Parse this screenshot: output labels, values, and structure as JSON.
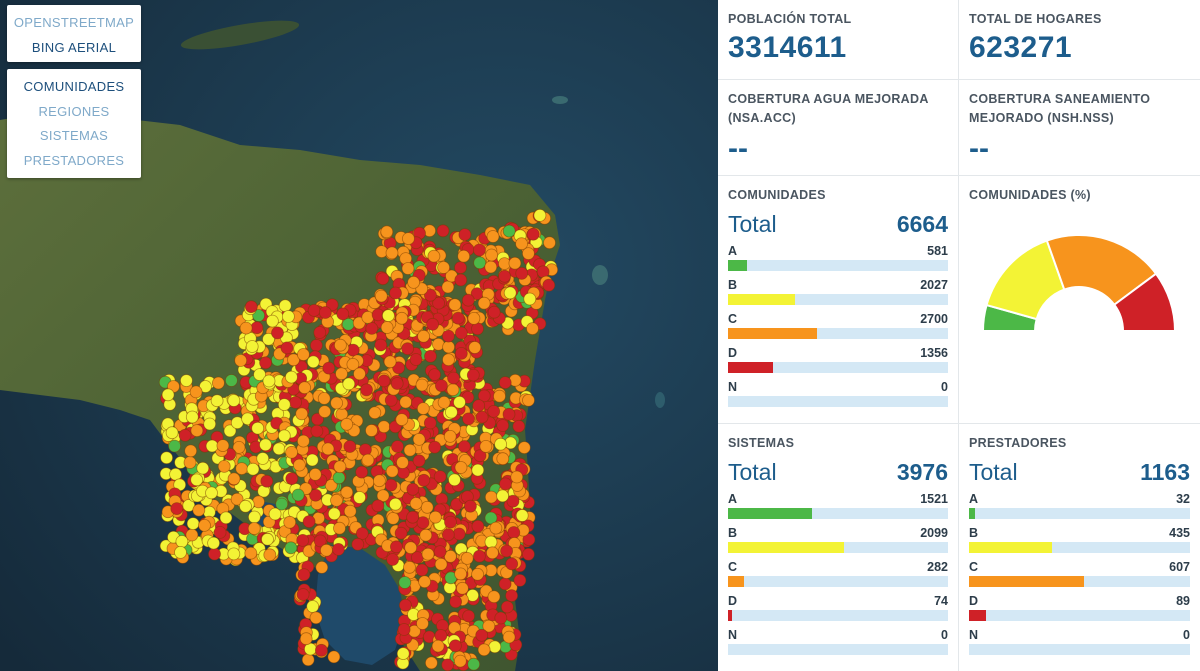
{
  "map": {
    "basemaps": [
      {
        "label": "OPENSTREETMAP",
        "active": false
      },
      {
        "label": "BING AERIAL",
        "active": true
      }
    ],
    "layers": [
      {
        "label": "COMUNIDADES",
        "active": true
      },
      {
        "label": "REGIONES",
        "active": false
      },
      {
        "label": "SISTEMAS",
        "active": false
      },
      {
        "label": "PRESTADORES",
        "active": false
      }
    ]
  },
  "colors": {
    "A": "#4cb847",
    "B": "#f3f335",
    "C": "#f7941d",
    "D": "#cf2127",
    "N": "#d4e8f5",
    "accent": "#1d5d8c"
  },
  "summary": {
    "poblacion_label": "POBLACIÓN TOTAL",
    "poblacion_value": "3314611",
    "hogares_label": "TOTAL DE HOGARES",
    "hogares_value": "623271",
    "agua_label": "COBERTURA AGUA MEJORADA (NSA.ACC)",
    "agua_value": "--",
    "saneamiento_label": "COBERTURA SANEAMIENTO MEJORADO (NSH.NSS)",
    "saneamiento_value": "--"
  },
  "comunidades": {
    "title": "COMUNIDADES",
    "total_label": "Total",
    "total": "6664",
    "rows": [
      {
        "label": "A",
        "value": 581
      },
      {
        "label": "B",
        "value": 2027
      },
      {
        "label": "C",
        "value": 2700
      },
      {
        "label": "D",
        "value": 1356
      },
      {
        "label": "N",
        "value": 0
      }
    ]
  },
  "comunidades_pct": {
    "title": "COMUNIDADES (%)",
    "slices": [
      {
        "label": "A",
        "value": 581
      },
      {
        "label": "B",
        "value": 2027
      },
      {
        "label": "C",
        "value": 2700
      },
      {
        "label": "D",
        "value": 1356
      }
    ]
  },
  "sistemas": {
    "title": "SISTEMAS",
    "total_label": "Total",
    "total": "3976",
    "rows": [
      {
        "label": "A",
        "value": 1521
      },
      {
        "label": "B",
        "value": 2099
      },
      {
        "label": "C",
        "value": 282
      },
      {
        "label": "D",
        "value": 74
      },
      {
        "label": "N",
        "value": 0
      }
    ]
  },
  "prestadores": {
    "title": "PRESTADORES",
    "total_label": "Total",
    "total": "1163",
    "rows": [
      {
        "label": "A",
        "value": 32
      },
      {
        "label": "B",
        "value": 435
      },
      {
        "label": "C",
        "value": 607
      },
      {
        "label": "D",
        "value": 89
      },
      {
        "label": "N",
        "value": 0
      }
    ]
  }
}
